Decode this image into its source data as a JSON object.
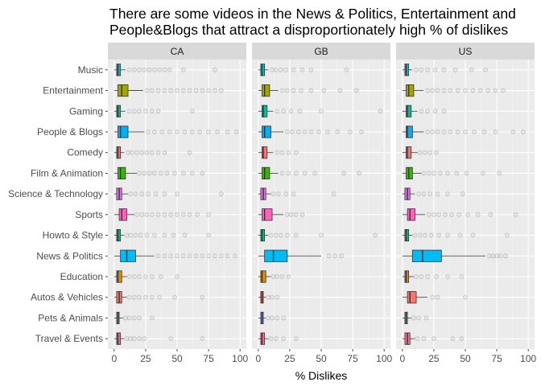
{
  "chart_data": {
    "type": "boxplot",
    "title_lines": [
      "There are some videos in the News & Politics, Entertainment and",
      "People&Blogs that attract a disproportionately high % of dislikes"
    ],
    "xlabel": "% Dislikes",
    "ylabel": "",
    "xlim": [
      0,
      100
    ],
    "x_ticks": [
      0,
      25,
      50,
      75,
      100
    ],
    "facets": [
      "CA",
      "GB",
      "US"
    ],
    "categories": [
      "Music",
      "Entertainment",
      "Gaming",
      "People & Blogs",
      "Comedy",
      "Film & Animation",
      "Science & Technology",
      "Sports",
      "Howto & Style",
      "News & Politics",
      "Education",
      "Autos & Vehicles",
      "Pets & Animals",
      "Travel & Events"
    ],
    "colors": {
      "Music": "#00BFC4",
      "Entertainment": "#A3A500",
      "Gaming": "#00C094",
      "People & Blogs": "#00B0F6",
      "Comedy": "#F8766D",
      "Film & Animation": "#39B600",
      "Science & Technology": "#E76BF3",
      "Sports": "#FF62BC",
      "Howto & Style": "#00BF7D",
      "News & Politics": "#00BCF5",
      "Education": "#D89000",
      "Autos & Vehicles": "#F8766D",
      "Pets & Animals": "#9590FF",
      "Travel & Events": "#FF6C91"
    },
    "panel_background": "#EBEBEB",
    "strip_background": "#D9D9D9",
    "grid": true,
    "legend": "none",
    "series": [
      {
        "facet": "CA",
        "boxes": [
          {
            "category": "Music",
            "q1": 2,
            "median": 3,
            "q3": 5,
            "whisker_low": 0,
            "whisker_high": 9,
            "outliers": [
              12,
              16,
              20,
              24,
              28,
              32,
              36,
              40,
              44,
              55,
              80
            ]
          },
          {
            "category": "Entertainment",
            "q1": 3,
            "median": 6,
            "q3": 11,
            "whisker_low": 0,
            "whisker_high": 23,
            "outliers": [
              26,
              30,
              35,
              40,
              45,
              50,
              55,
              60,
              65,
              70,
              75,
              80,
              85
            ]
          },
          {
            "category": "Gaming",
            "q1": 2,
            "median": 3,
            "q3": 5,
            "whisker_low": 0,
            "whisker_high": 9,
            "outliers": [
              12,
              16,
              20,
              25,
              30,
              35,
              62
            ]
          },
          {
            "category": "People & Blogs",
            "q1": 3,
            "median": 5,
            "q3": 11,
            "whisker_low": 0,
            "whisker_high": 24,
            "outliers": [
              27,
              32,
              38,
              44,
              50,
              56,
              62,
              68,
              75,
              82,
              90,
              97
            ]
          },
          {
            "category": "Comedy",
            "q1": 2,
            "median": 3,
            "q3": 5,
            "whisker_low": 0,
            "whisker_high": 8,
            "outliers": [
              11,
              14,
              18,
              22,
              26,
              30,
              35,
              40,
              60
            ]
          },
          {
            "category": "Film & Animation",
            "q1": 3,
            "median": 5,
            "q3": 9,
            "whisker_low": 0,
            "whisker_high": 18,
            "outliers": [
              20,
              24,
              28,
              32,
              37,
              42,
              48,
              55,
              62,
              70
            ]
          },
          {
            "category": "Science & Technology",
            "q1": 2,
            "median": 4,
            "q3": 6,
            "whisker_low": 0,
            "whisker_high": 11,
            "outliers": [
              13,
              17,
              22,
              27,
              33,
              40,
              50,
              85
            ]
          },
          {
            "category": "Sports",
            "q1": 4,
            "median": 6,
            "q3": 10,
            "whisker_low": 0,
            "whisker_high": 16,
            "outliers": [
              18,
              22,
              26,
              30,
              35,
              40,
              45,
              50,
              55,
              60,
              66,
              75
            ]
          },
          {
            "category": "Howto & Style",
            "q1": 2,
            "median": 3,
            "q3": 5,
            "whisker_low": 0,
            "whisker_high": 8,
            "outliers": [
              10,
              13,
              17,
              21,
              26,
              32,
              40,
              47,
              56,
              75
            ]
          },
          {
            "category": "News & Politics",
            "q1": 5,
            "median": 10,
            "q3": 17,
            "whisker_low": 0,
            "whisker_high": 32,
            "outliers": [
              35,
              40,
              45,
              50,
              55,
              60,
              65,
              70,
              75,
              80,
              85,
              90,
              96
            ]
          },
          {
            "category": "Education",
            "q1": 2,
            "median": 3,
            "q3": 6,
            "whisker_low": 0,
            "whisker_high": 10,
            "outliers": [
              12,
              16,
              20,
              25,
              30,
              37,
              50
            ]
          },
          {
            "category": "Autos & Vehicles",
            "q1": 2,
            "median": 4,
            "q3": 6,
            "whisker_low": 0,
            "whisker_high": 10,
            "outliers": [
              12,
              16,
              20,
              25,
              30,
              36,
              48,
              70
            ]
          },
          {
            "category": "Pets & Animals",
            "q1": 2,
            "median": 3,
            "q3": 4,
            "whisker_low": 0,
            "whisker_high": 7,
            "outliers": [
              9,
              12,
              16,
              20,
              30
            ]
          },
          {
            "category": "Travel & Events",
            "q1": 2,
            "median": 3,
            "q3": 5,
            "whisker_low": 0,
            "whisker_high": 8,
            "outliers": [
              10,
              13,
              16,
              20,
              24,
              45,
              70
            ]
          }
        ]
      },
      {
        "facet": "GB",
        "boxes": [
          {
            "category": "Music",
            "q1": 2,
            "median": 3,
            "q3": 5,
            "whisker_low": 0,
            "whisker_high": 8,
            "outliers": [
              11,
              14,
              18,
              22,
              28,
              35,
              42,
              70
            ]
          },
          {
            "category": "Entertainment",
            "q1": 3,
            "median": 5,
            "q3": 9,
            "whisker_low": 0,
            "whisker_high": 16,
            "outliers": [
              19,
              23,
              28,
              34,
              42,
              52,
              65,
              78
            ]
          },
          {
            "category": "Gaming",
            "q1": 3,
            "median": 4,
            "q3": 7,
            "whisker_low": 0,
            "whisker_high": 12,
            "outliers": [
              15,
              20,
              26,
              33,
              50,
              97
            ]
          },
          {
            "category": "People & Blogs",
            "q1": 3,
            "median": 5,
            "q3": 10,
            "whisker_low": 0,
            "whisker_high": 20,
            "outliers": [
              23,
              27,
              32,
              37,
              42,
              48,
              55,
              63,
              73,
              82
            ]
          },
          {
            "category": "Comedy",
            "q1": 3,
            "median": 4,
            "q3": 7,
            "whisker_low": 0,
            "whisker_high": 12,
            "outliers": [
              15,
              19,
              24,
              30
            ]
          },
          {
            "category": "Film & Animation",
            "q1": 3,
            "median": 5,
            "q3": 9,
            "whisker_low": 0,
            "whisker_high": 16,
            "outliers": [
              19,
              24,
              30,
              37,
              45,
              68,
              80
            ]
          },
          {
            "category": "Science & Technology",
            "q1": 2,
            "median": 4,
            "q3": 6,
            "whisker_low": 0,
            "whisker_high": 10,
            "outliers": [
              12,
              16,
              22,
              28,
              60
            ]
          },
          {
            "category": "Sports",
            "q1": 3,
            "median": 5,
            "q3": 11,
            "whisker_low": 0,
            "whisker_high": 20,
            "outliers": [
              23,
              26,
              30,
              35
            ]
          },
          {
            "category": "Howto & Style",
            "q1": 2,
            "median": 3,
            "q3": 5,
            "whisker_low": 0,
            "whisker_high": 8,
            "outliers": [
              10,
              14,
              18,
              23,
              30,
              50,
              93
            ]
          },
          {
            "category": "News & Politics",
            "q1": 5,
            "median": 12,
            "q3": 23,
            "whisker_low": 0,
            "whisker_high": 50,
            "outliers": [
              56,
              61,
              66
            ]
          },
          {
            "category": "Education",
            "q1": 2,
            "median": 3,
            "q3": 6,
            "whisker_low": 0,
            "whisker_high": 10,
            "outliers": [
              12,
              15,
              19,
              24
            ]
          },
          {
            "category": "Autos & Vehicles",
            "q1": 2,
            "median": 3,
            "q3": 4,
            "whisker_low": 0,
            "whisker_high": 6,
            "outliers": [
              8,
              11,
              15
            ]
          },
          {
            "category": "Pets & Animals",
            "q1": 2,
            "median": 3,
            "q3": 4,
            "whisker_low": 0,
            "whisker_high": 6,
            "outliers": [
              8,
              11,
              15,
              20
            ]
          },
          {
            "category": "Travel & Events",
            "q1": 2,
            "median": 3,
            "q3": 5,
            "whisker_low": 0,
            "whisker_high": 8,
            "outliers": [
              10,
              14,
              20,
              30
            ]
          }
        ]
      },
      {
        "facet": "US",
        "boxes": [
          {
            "category": "Music",
            "q1": 2,
            "median": 3,
            "q3": 5,
            "whisker_low": 0,
            "whisker_high": 8,
            "outliers": [
              11,
              15,
              20,
              26,
              33,
              42,
              55,
              66
            ]
          },
          {
            "category": "Entertainment",
            "q1": 3,
            "median": 5,
            "q3": 9,
            "whisker_low": 0,
            "whisker_high": 17,
            "outliers": [
              20,
              24,
              28,
              33,
              38,
              44,
              50,
              56,
              62,
              68,
              74,
              80
            ]
          },
          {
            "category": "Gaming",
            "q1": 3,
            "median": 4,
            "q3": 7,
            "whisker_low": 0,
            "whisker_high": 12,
            "outliers": [
              15,
              20,
              26,
              33
            ]
          },
          {
            "category": "People & Blogs",
            "q1": 3,
            "median": 4,
            "q3": 8,
            "whisker_low": 0,
            "whisker_high": 17,
            "outliers": [
              20,
              24,
              28,
              33,
              38,
              44,
              50,
              57,
              65,
              74,
              88,
              96
            ]
          },
          {
            "category": "Comedy",
            "q1": 3,
            "median": 4,
            "q3": 7,
            "whisker_low": 0,
            "whisker_high": 12,
            "outliers": [
              14,
              18,
              22,
              27
            ]
          },
          {
            "category": "Film & Animation",
            "q1": 3,
            "median": 5,
            "q3": 8,
            "whisker_low": 0,
            "whisker_high": 15,
            "outliers": [
              17,
              21,
              25,
              30,
              36,
              43,
              51,
              64,
              77
            ]
          },
          {
            "category": "Science & Technology",
            "q1": 2,
            "median": 4,
            "q3": 6,
            "whisker_low": 0,
            "whisker_high": 10,
            "outliers": [
              13,
              17,
              22,
              28,
              36,
              48
            ]
          },
          {
            "category": "Sports",
            "q1": 4,
            "median": 6,
            "q3": 10,
            "whisker_low": 0,
            "whisker_high": 18,
            "outliers": [
              21,
              25,
              29,
              34,
              39,
              45,
              52,
              60,
              70,
              90
            ]
          },
          {
            "category": "Howto & Style",
            "q1": 2,
            "median": 3,
            "q3": 5,
            "whisker_low": 0,
            "whisker_high": 8,
            "outliers": [
              10,
              14,
              18,
              23,
              29,
              36,
              46,
              56,
              83
            ]
          },
          {
            "category": "News & Politics",
            "q1": 8,
            "median": 16,
            "q3": 31,
            "whisker_low": 0,
            "whisker_high": 66,
            "outliers": [
              69,
              72,
              75,
              78,
              82
            ]
          },
          {
            "category": "Education",
            "q1": 2,
            "median": 3,
            "q3": 5,
            "whisker_low": 0,
            "whisker_high": 9,
            "outliers": [
              11,
              15,
              20,
              27,
              36,
              47
            ]
          },
          {
            "category": "Autos & Vehicles",
            "q1": 4,
            "median": 6,
            "q3": 11,
            "whisker_low": 0,
            "whisker_high": 20,
            "outliers": [
              24,
              28,
              50
            ]
          },
          {
            "category": "Pets & Animals",
            "q1": 2,
            "median": 3,
            "q3": 4,
            "whisker_low": 0,
            "whisker_high": 7,
            "outliers": [
              9,
              13,
              19
            ]
          },
          {
            "category": "Travel & Events",
            "q1": 2,
            "median": 4,
            "q3": 6,
            "whisker_low": 0,
            "whisker_high": 10,
            "outliers": [
              12,
              17,
              25,
              40,
              47
            ]
          }
        ]
      }
    ]
  }
}
